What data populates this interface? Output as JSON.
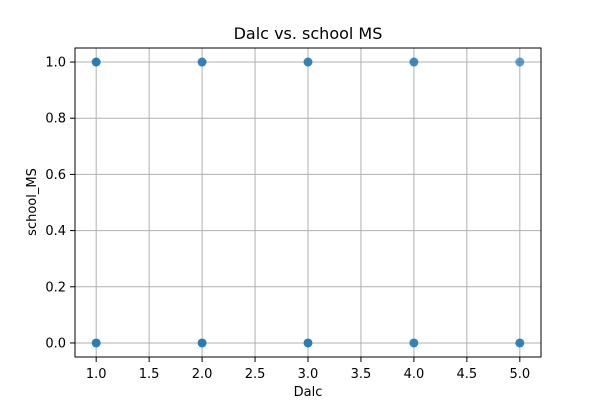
{
  "chart_data": {
    "type": "scatter",
    "title": "Dalc vs. school MS",
    "xlabel": "Dalc",
    "ylabel": "school_MS",
    "xlim": [
      0.8,
      5.2
    ],
    "ylim": [
      -0.05,
      1.05
    ],
    "xticks": [
      1.0,
      1.5,
      2.0,
      2.5,
      3.0,
      3.5,
      4.0,
      4.5,
      5.0
    ],
    "yticks": [
      0.0,
      0.2,
      0.4,
      0.6,
      0.8,
      1.0
    ],
    "xtick_labels": [
      "1.0",
      "1.5",
      "2.0",
      "2.5",
      "3.0",
      "3.5",
      "4.0",
      "4.5",
      "5.0"
    ],
    "ytick_labels": [
      "0.0",
      "0.2",
      "0.4",
      "0.6",
      "0.8",
      "1.0"
    ],
    "grid": true,
    "point_color": "#1f77b4",
    "points": [
      {
        "x": 1,
        "y": 0,
        "opacity": 0.95
      },
      {
        "x": 1,
        "y": 1,
        "opacity": 0.95
      },
      {
        "x": 2,
        "y": 0,
        "opacity": 0.95
      },
      {
        "x": 2,
        "y": 1,
        "opacity": 0.9
      },
      {
        "x": 3,
        "y": 0,
        "opacity": 0.95
      },
      {
        "x": 3,
        "y": 1,
        "opacity": 0.9
      },
      {
        "x": 4,
        "y": 0,
        "opacity": 0.9
      },
      {
        "x": 4,
        "y": 1,
        "opacity": 0.85
      },
      {
        "x": 5,
        "y": 0,
        "opacity": 0.9
      },
      {
        "x": 5,
        "y": 1,
        "opacity": 0.7
      }
    ]
  }
}
